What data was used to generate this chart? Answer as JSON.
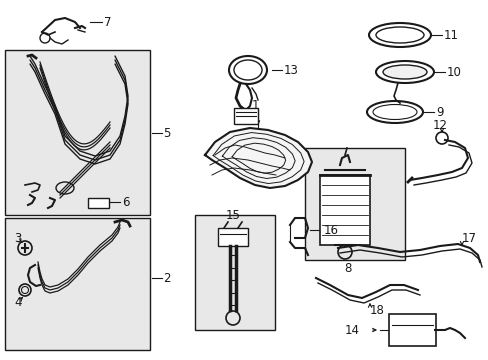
{
  "bg_color": "#ffffff",
  "line_color": "#1a1a1a",
  "box_fill": "#e8e8e8",
  "font_size": 8.5,
  "figsize": [
    4.89,
    3.6
  ],
  "dpi": 100
}
